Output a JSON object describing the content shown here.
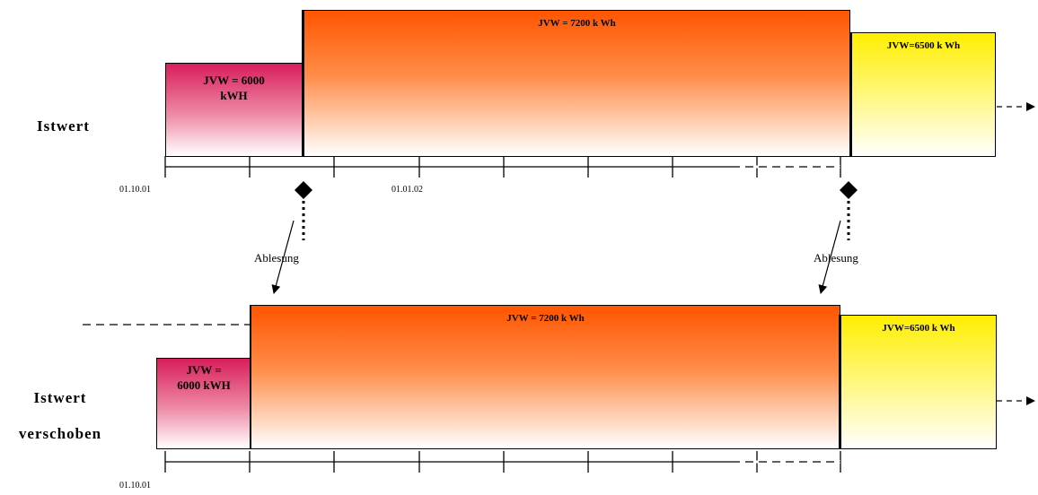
{
  "top": {
    "row_label": "Istwert",
    "box_red": "JVW = 6000 kWH",
    "box_orange": "JVW = 7200 k Wh",
    "box_yellow": "JVW=6500 k Wh",
    "date_start": "01.10.01",
    "date_mid": "01.01.02"
  },
  "bottom": {
    "row_label_line1": "Istwert",
    "row_label_line2": "verschoben",
    "box_red": "JVW = 6000 kWH",
    "box_orange": "JVW = 7200 k Wh",
    "box_yellow": "JVW=6500 k Wh",
    "date_start": "01.10.01"
  },
  "readings": {
    "left_label": "Ablesung",
    "right_label": "Ablesung"
  },
  "colors": {
    "red": "#d81e5b",
    "orange": "#ff5500",
    "yellow": "#ffee00"
  }
}
